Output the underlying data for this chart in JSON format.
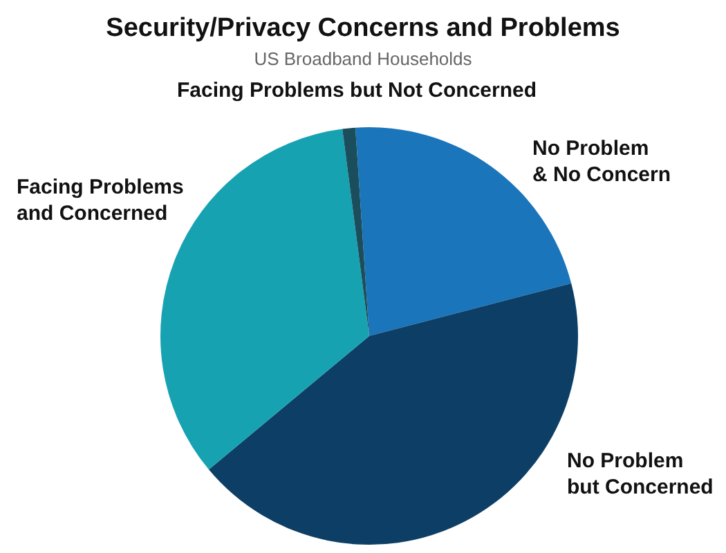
{
  "chart_data": {
    "type": "pie",
    "title": "Security/Privacy Concerns and Problems",
    "subtitle": "US Broadband Households",
    "categories": [
      "No Problem & No Concern",
      "No Problem but Concerned",
      "Facing Problems and Concerned",
      "Facing Problems but Not Concerned"
    ],
    "values": [
      22,
      43,
      34,
      1
    ],
    "colors": [
      "#1a75bb",
      "#0d3f66",
      "#17a2b2",
      "#1b4e5c"
    ]
  }
}
